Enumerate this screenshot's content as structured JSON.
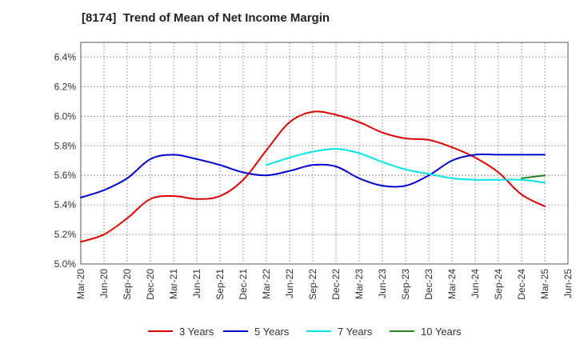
{
  "chart_data": {
    "type": "line",
    "title": "[8174]  Trend of Mean of Net Income Margin",
    "xlabel": "",
    "ylabel": "",
    "ylim": [
      5.0,
      6.5
    ],
    "yticks": [
      "5.0%",
      "5.2%",
      "5.4%",
      "5.6%",
      "5.8%",
      "6.0%",
      "6.2%",
      "6.4%"
    ],
    "ytick_values": [
      5.0,
      5.2,
      5.4,
      5.6,
      5.8,
      6.0,
      6.2,
      6.4
    ],
    "xticks": [
      "Mar-20",
      "Jun-20",
      "Sep-20",
      "Dec-20",
      "Mar-21",
      "Jun-21",
      "Sep-21",
      "Dec-21",
      "Mar-22",
      "Jun-22",
      "Sep-22",
      "Dec-22",
      "Mar-23",
      "Jun-23",
      "Sep-23",
      "Dec-23",
      "Mar-24",
      "Jun-24",
      "Sep-24",
      "Dec-24",
      "Mar-25",
      "Jun-25"
    ],
    "x": [
      "Mar-20",
      "Jun-20",
      "Sep-20",
      "Dec-20",
      "Mar-21",
      "Jun-21",
      "Sep-21",
      "Dec-21",
      "Mar-22",
      "Jun-22",
      "Sep-22",
      "Dec-22",
      "Mar-23",
      "Jun-23",
      "Sep-23",
      "Dec-23",
      "Mar-24",
      "Jun-24",
      "Sep-24",
      "Dec-24",
      "Mar-25"
    ],
    "grid": true,
    "legend_position": "bottom",
    "series": [
      {
        "name": "3 Years",
        "color": "#dd0000",
        "values": [
          5.15,
          5.2,
          5.31,
          5.44,
          5.46,
          5.44,
          5.46,
          5.57,
          5.77,
          5.96,
          6.03,
          6.01,
          5.96,
          5.89,
          5.85,
          5.84,
          5.79,
          5.72,
          5.62,
          5.47,
          5.39
        ]
      },
      {
        "name": "5 Years",
        "color": "#0000cc",
        "values": [
          5.45,
          5.5,
          5.58,
          5.71,
          5.74,
          5.71,
          5.67,
          5.62,
          5.6,
          5.63,
          5.67,
          5.66,
          5.58,
          5.53,
          5.53,
          5.6,
          5.7,
          5.74,
          5.74,
          5.74,
          5.74
        ]
      },
      {
        "name": "7 Years",
        "color": "#00e5e5",
        "values": [
          null,
          null,
          null,
          null,
          null,
          null,
          null,
          null,
          5.67,
          5.72,
          5.76,
          5.78,
          5.75,
          5.69,
          5.64,
          5.61,
          5.58,
          5.57,
          5.57,
          5.57,
          5.55
        ]
      },
      {
        "name": "10 Years",
        "color": "#228822",
        "values": [
          null,
          null,
          null,
          null,
          null,
          null,
          null,
          null,
          null,
          null,
          null,
          null,
          null,
          null,
          null,
          null,
          null,
          null,
          null,
          5.58,
          5.6
        ]
      }
    ]
  }
}
